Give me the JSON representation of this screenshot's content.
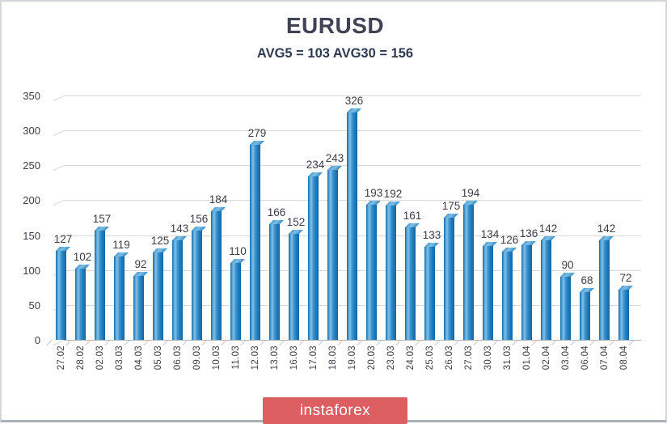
{
  "page": {
    "title": "EURUSD",
    "subtitle": "AVG5 = 103 AVG30 = 156"
  },
  "branding": {
    "logo_text": "instaforex",
    "logo_bg": "#dd5e61",
    "logo_text_color": "#ffffff"
  },
  "chart_data": {
    "type": "bar",
    "title": "EURUSD",
    "subtitle": "AVG5 = 103 AVG30 = 156",
    "avg5": 103,
    "avg30": 156,
    "categories": [
      "27.02",
      "28.02",
      "02.03",
      "03.03",
      "04.03",
      "05.03",
      "06.03",
      "09.03",
      "10.03",
      "11.03",
      "12.03",
      "13.03",
      "16.03",
      "17.03",
      "18.03",
      "19.03",
      "20.03",
      "23.03",
      "24.03",
      "25.03",
      "26.03",
      "27.03",
      "30.03",
      "31.03",
      "01.04",
      "02.04",
      "03.04",
      "06.04",
      "07.04",
      "08.04"
    ],
    "values": [
      127,
      102,
      157,
      119,
      92,
      125,
      143,
      156,
      184,
      110,
      279,
      166,
      152,
      234,
      243,
      326,
      193,
      192,
      161,
      133,
      175,
      194,
      134,
      126,
      136,
      142,
      90,
      68,
      142,
      72
    ],
    "xlabel": "",
    "ylabel": "",
    "ylim": [
      0,
      350
    ],
    "ytick_step": 50,
    "grid": true,
    "legend": false,
    "effect": "3d-column",
    "bar_color": "#2f8dca",
    "bar_color_dark": "#15669e",
    "bar_color_light": "#83c0e8",
    "grid_color": "#d9d9d9",
    "text_color": "#3e3e4a",
    "title_color": "#3f4354",
    "subtitle_color": "#2e3a52"
  }
}
